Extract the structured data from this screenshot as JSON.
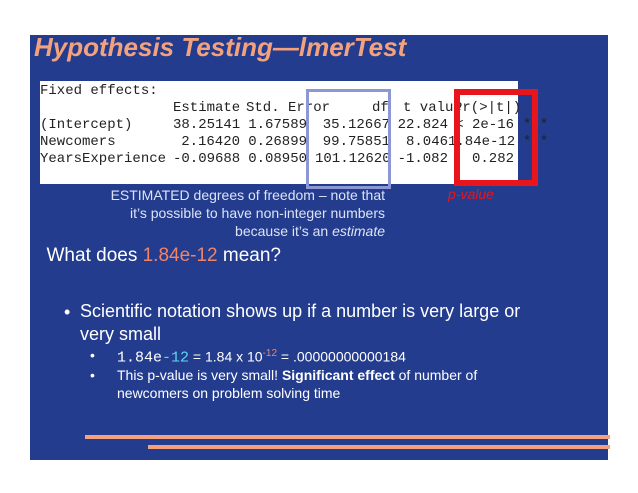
{
  "title": "Hypothesis Testing—lmerTest",
  "table": {
    "heading": "Fixed effects:",
    "columns": [
      "Estimate",
      "Std. Error",
      "df",
      "t value",
      "Pr(>|t|)"
    ],
    "rows": [
      {
        "name": "(Intercept)",
        "estimate": "38.25141",
        "se": "1.67589",
        "df": "35.12667",
        "t": "22.824",
        "p": "< 2e-16",
        "sig": "***"
      },
      {
        "name": "Newcomers",
        "estimate": "2.16420",
        "se": "0.26899",
        "df": "99.75851",
        "t": "8.046",
        "p": "1.84e-12",
        "sig": "***"
      },
      {
        "name": "YearsExperience",
        "estimate": "-0.09688",
        "se": "0.08950",
        "df": "101.12620",
        "t": "-1.082",
        "p": "0.282",
        "sig": ""
      }
    ]
  },
  "annotations": {
    "df_note_lines": [
      "ESTIMATED degrees of freedom – note that",
      "it’s possible to have non-integer numbers",
      "because it’s an "
    ],
    "df_note_em": "estimate",
    "pvalue_label": "p-value"
  },
  "bullets": {
    "b1_prefix": "What does ",
    "b1_highlight": "1.84e-12",
    "b1_suffix": " mean?",
    "b2": "Scientific notation shows up if a number is very large or very small",
    "b3a_mono": "1.84e",
    "b3a_exp": "-12",
    "b3a_mid": " = 1.84 x 10",
    "b3a_sup": "-12",
    "b3a_tail": " = .00000000000184",
    "b3b_pre": "This p-value is very small!  ",
    "b3b_bold": "Significant effect",
    "b3b_post": " of number of newcomers on problem solving time",
    "bullet_large": "•",
    "bullet_small": "•"
  },
  "colors": {
    "background": "#233c8e",
    "title": "#f4a27d",
    "highlight": "#f08468",
    "cyan": "#5bd8f0",
    "red": "#e8151c",
    "df_box": "#8c97d4"
  }
}
